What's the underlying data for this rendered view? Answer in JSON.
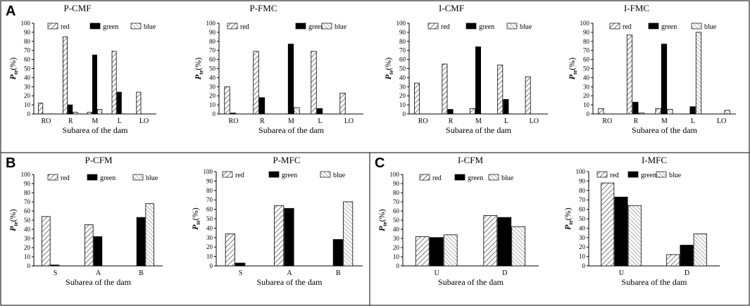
{
  "panels": [
    {
      "letter": "A"
    },
    {
      "letter": "B"
    },
    {
      "letter": "C"
    }
  ],
  "chart_data": [
    {
      "type": "bar",
      "panel": "A",
      "title": "P-CMF",
      "categories": [
        "RO",
        "R",
        "M",
        "L",
        "LO"
      ],
      "series": [
        {
          "name": "red",
          "values": [
            12,
            85,
            2,
            69,
            24
          ]
        },
        {
          "name": "green",
          "values": [
            0,
            10,
            65,
            24,
            0
          ]
        },
        {
          "name": "blue",
          "values": [
            0,
            2,
            5,
            0,
            0
          ]
        }
      ],
      "xlabel": "Subarea of the dam",
      "ylabel": "P",
      "ylabel_sub": "te",
      "ylabel_unit": "(%)",
      "ylim": [
        0,
        100
      ],
      "yticks": [
        0,
        10,
        20,
        30,
        40,
        50,
        60,
        70,
        80,
        90,
        100
      ]
    },
    {
      "type": "bar",
      "panel": "A",
      "title": "P-FMC",
      "categories": [
        "RO",
        "R",
        "M",
        "L",
        "LO"
      ],
      "series": [
        {
          "name": "red",
          "values": [
            30,
            69,
            0,
            69,
            23
          ]
        },
        {
          "name": "green",
          "values": [
            1,
            18,
            77,
            6,
            0
          ]
        },
        {
          "name": "blue",
          "values": [
            0,
            0,
            7,
            0,
            0
          ]
        }
      ],
      "xlabel": "Subarea of the dam",
      "ylabel": "P",
      "ylabel_sub": "te",
      "ylabel_unit": "(%)",
      "ylim": [
        0,
        100
      ],
      "yticks": [
        0,
        10,
        20,
        30,
        40,
        50,
        60,
        70,
        80,
        90,
        100
      ]
    },
    {
      "type": "bar",
      "panel": "A",
      "title": "I-CMF",
      "categories": [
        "RO",
        "R",
        "M",
        "L",
        "LO"
      ],
      "series": [
        {
          "name": "red",
          "values": [
            34,
            55,
            6,
            54,
            41
          ]
        },
        {
          "name": "green",
          "values": [
            0,
            5,
            74,
            16,
            0
          ]
        },
        {
          "name": "blue",
          "values": [
            0,
            0,
            0,
            0,
            0
          ]
        }
      ],
      "xlabel": "Subarea of the dam",
      "ylabel": "P",
      "ylabel_sub": "te",
      "ylabel_unit": "(%)",
      "ylim": [
        0,
        100
      ],
      "yticks": [
        0,
        10,
        20,
        30,
        40,
        50,
        60,
        70,
        80,
        90,
        100
      ]
    },
    {
      "type": "bar",
      "panel": "A",
      "title": "I-FMC",
      "categories": [
        "RO",
        "R",
        "M",
        "L",
        "LO"
      ],
      "series": [
        {
          "name": "red",
          "values": [
            6,
            87,
            6,
            0,
            0
          ]
        },
        {
          "name": "green",
          "values": [
            0,
            13,
            77,
            8,
            0
          ]
        },
        {
          "name": "blue",
          "values": [
            0,
            1,
            5,
            90,
            4
          ]
        }
      ],
      "xlabel": "Subarea of the dam",
      "ylabel": "P",
      "ylabel_sub": "te",
      "ylabel_unit": "(%)",
      "ylim": [
        0,
        100
      ],
      "yticks": [
        0,
        10,
        20,
        30,
        40,
        50,
        60,
        70,
        80,
        90,
        100
      ]
    },
    {
      "type": "bar",
      "panel": "B",
      "title": "P-CFM",
      "categories": [
        "S",
        "A",
        "B"
      ],
      "series": [
        {
          "name": "red",
          "values": [
            54,
            45,
            0
          ]
        },
        {
          "name": "green",
          "values": [
            1,
            32,
            53
          ]
        },
        {
          "name": "blue",
          "values": [
            0,
            0,
            68
          ]
        }
      ],
      "xlabel": "Subarea of the dam",
      "ylabel": "P",
      "ylabel_sub": "te",
      "ylabel_unit": "(%)",
      "ylim": [
        0,
        100
      ],
      "yticks": [
        0,
        10,
        20,
        30,
        40,
        50,
        60,
        70,
        80,
        90,
        100
      ]
    },
    {
      "type": "bar",
      "panel": "B",
      "title": "P-MFC",
      "categories": [
        "S",
        "A",
        "B"
      ],
      "series": [
        {
          "name": "red",
          "values": [
            34,
            64,
            0
          ]
        },
        {
          "name": "green",
          "values": [
            3,
            61,
            28
          ]
        },
        {
          "name": "blue",
          "values": [
            0,
            0,
            68
          ]
        }
      ],
      "xlabel": "Subarea of the dam",
      "ylabel": "P",
      "ylabel_sub": "te",
      "ylabel_unit": "(%)",
      "ylim": [
        0,
        100
      ],
      "yticks": [
        0,
        10,
        20,
        30,
        40,
        50,
        60,
        70,
        80,
        90,
        100
      ]
    },
    {
      "type": "bar",
      "panel": "C",
      "title": "I-CFM",
      "categories": [
        "U",
        "D"
      ],
      "series": [
        {
          "name": "red",
          "values": [
            32,
            55
          ]
        },
        {
          "name": "green",
          "values": [
            31,
            53
          ]
        },
        {
          "name": "blue",
          "values": [
            34,
            43
          ]
        }
      ],
      "xlabel": "Subarea of the dam",
      "ylabel": "P",
      "ylabel_sub": "te",
      "ylabel_unit": "(%)",
      "ylim": [
        0,
        100
      ],
      "yticks": [
        0,
        10,
        20,
        30,
        40,
        50,
        60,
        70,
        80,
        90,
        100
      ]
    },
    {
      "type": "bar",
      "panel": "C",
      "title": "I-MFC",
      "categories": [
        "U",
        "D"
      ],
      "series": [
        {
          "name": "red",
          "values": [
            88,
            12
          ]
        },
        {
          "name": "green",
          "values": [
            73,
            22
          ]
        },
        {
          "name": "blue",
          "values": [
            64,
            34
          ]
        }
      ],
      "xlabel": "Subarea of the dam",
      "ylabel": "P",
      "ylabel_sub": "te",
      "ylabel_unit": "(%)",
      "ylim": [
        0,
        100
      ],
      "yticks": [
        0,
        10,
        20,
        30,
        40,
        50,
        60,
        70,
        80,
        90,
        100
      ]
    }
  ]
}
